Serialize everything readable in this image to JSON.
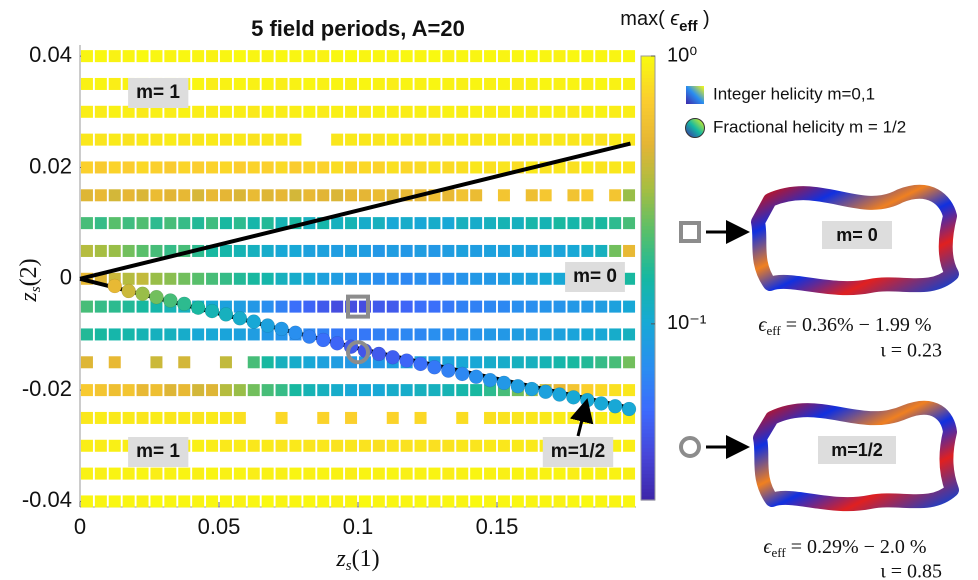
{
  "chart_data": {
    "type": "heatmap-scatter",
    "title": "5 field periods, A=20",
    "xlabel": [
      "z",
      "s",
      "(1)"
    ],
    "ylabel": [
      "z",
      "s",
      "(2)"
    ],
    "xlim": [
      0,
      0.2
    ],
    "ylim": [
      -0.041,
      0.042
    ],
    "xticks": [
      0,
      0.05,
      0.1,
      0.15
    ],
    "yticks": [
      0.04,
      0.02,
      0,
      -0.02,
      -0.04
    ],
    "x": [
      0.0025,
      0.0075,
      0.0125,
      0.0175,
      0.0225,
      0.0275,
      0.0325,
      0.0375,
      0.0425,
      0.0475,
      0.0525,
      0.0575,
      0.0625,
      0.0675,
      0.0725,
      0.0775,
      0.0825,
      0.0875,
      0.0925,
      0.0975,
      0.1025,
      0.1075,
      0.1125,
      0.1175,
      0.1225,
      0.1275,
      0.1325,
      0.1375,
      0.1425,
      0.1475,
      0.1525,
      0.1575,
      0.1625,
      0.1675,
      0.1725,
      0.1775,
      0.1825,
      0.1875,
      0.1925,
      0.1975
    ],
    "y": [
      0.04,
      0.035,
      0.03,
      0.025,
      0.02,
      0.015,
      0.01,
      0.005,
      0,
      -0.005,
      -0.01,
      -0.015,
      -0.02,
      -0.025,
      -0.03,
      -0.035,
      -0.04
    ],
    "values": [
      [
        0.95,
        0.97,
        0.93,
        0.95,
        0.98,
        0.96,
        0.94,
        0.97,
        0.95,
        0.93,
        0.96,
        0.98,
        0.95,
        0.94,
        0.97,
        0.96,
        0.95,
        0.93,
        0.97,
        0.98,
        0.95,
        0.96,
        0.94,
        0.97,
        0.95,
        0.98,
        0.93,
        0.96,
        0.95,
        0.97,
        0.94,
        0.96,
        0.98,
        0.95,
        0.93,
        0.97,
        0.96,
        0.95,
        0.94,
        0.97
      ],
      [
        0.92,
        0.94,
        0.9,
        0.93,
        0.95,
        0.91,
        0.94,
        0.92,
        0.96,
        0.9,
        0.93,
        0.95,
        0.92,
        0.94,
        0.9,
        0.93,
        0.96,
        0.92,
        0.94,
        0.91,
        0.95,
        0.93,
        0.9,
        0.94,
        0.92,
        0.96,
        0.93,
        0.91,
        0.95,
        0.92,
        0.94,
        0.9,
        0.93,
        0.95,
        0.92,
        0.94,
        0.91,
        0.96,
        0.93,
        0.92
      ],
      [
        0.9,
        0.88,
        0.92,
        0.9,
        0.87,
        0.91,
        0.89,
        0.93,
        0.9,
        0.88,
        0.91,
        0.9,
        0.86,
        0.92,
        0.89,
        0.9,
        0.93,
        0.88,
        0.91,
        0.9,
        0.87,
        0.92,
        0.9,
        0.89,
        0.91,
        0.88,
        0.93,
        0.9,
        0.92,
        0.89,
        0.9,
        0.91,
        0.88,
        0.92,
        0.9,
        0.87,
        0.91,
        0.93,
        0.89,
        0.9
      ],
      [
        0.85,
        0.83,
        0.87,
        0.82,
        0.86,
        0.84,
        0.88,
        0.83,
        0.85,
        0.87,
        0.84,
        0.86,
        0.82,
        0.85,
        0.83,
        0.87,
        null,
        null,
        0.84,
        0.86,
        0.85,
        0.83,
        0.88,
        0.84,
        0.86,
        0.82,
        0.85,
        0.87,
        0.83,
        0.86,
        0.84,
        0.85,
        0.87,
        0.83,
        0.86,
        0.84,
        0.85,
        0.82,
        0.87,
        0.85
      ],
      [
        0.7,
        0.65,
        0.72,
        0.68,
        0.75,
        0.7,
        0.66,
        0.73,
        0.69,
        0.71,
        0.74,
        0.68,
        0.72,
        0.7,
        0.76,
        0.67,
        0.73,
        0.71,
        0.78,
        0.7,
        0.75,
        0.72,
        0.8,
        0.74,
        0.77,
        0.82,
        0.76,
        0.79,
        0.85,
        0.8,
        0.83,
        0.78,
        0.86,
        0.81,
        0.84,
        0.8,
        0.87,
        0.82,
        0.85,
        0.83
      ],
      [
        0.45,
        0.5,
        0.42,
        0.48,
        0.44,
        0.52,
        0.46,
        0.49,
        0.43,
        0.5,
        0.47,
        0.44,
        0.51,
        0.45,
        0.48,
        0.42,
        0.5,
        0.46,
        0.44,
        0.49,
        0.47,
        0.52,
        0.45,
        0.5,
        0.48,
        0.55,
        0.5,
        0.58,
        0.52,
        null,
        0.6,
        null,
        0.55,
        0.62,
        null,
        0.58,
        0.65,
        null,
        0.6,
        0.3
      ],
      [
        0.2,
        0.18,
        0.22,
        0.19,
        0.21,
        0.17,
        0.2,
        0.18,
        0.16,
        0.19,
        0.15,
        0.17,
        0.14,
        0.16,
        0.13,
        0.15,
        0.12,
        0.14,
        0.12,
        0.13,
        0.11,
        0.12,
        0.1,
        0.11,
        0.1,
        0.11,
        0.1,
        0.12,
        0.11,
        0.12,
        0.13,
        0.12,
        0.14,
        0.13,
        0.15,
        0.14,
        0.16,
        0.15,
        0.17,
        0.2
      ],
      [
        0.35,
        0.32,
        0.3,
        0.25,
        0.22,
        0.2,
        0.18,
        0.2,
        0.17,
        0.15,
        0.14,
        0.13,
        0.12,
        0.11,
        0.1,
        0.1,
        0.09,
        0.09,
        0.085,
        0.09,
        0.085,
        0.08,
        0.085,
        0.08,
        0.085,
        0.08,
        0.085,
        0.09,
        0.085,
        0.09,
        0.09,
        0.095,
        0.09,
        0.1,
        0.095,
        0.1,
        0.11,
        0.12,
        0.25,
        0.5
      ],
      [
        0.5,
        0.45,
        0.4,
        0.35,
        0.38,
        0.3,
        0.28,
        0.25,
        0.22,
        0.2,
        0.18,
        0.16,
        0.15,
        0.14,
        0.12,
        0.11,
        0.1,
        0.09,
        0.085,
        0.08,
        0.075,
        0.07,
        0.07,
        0.065,
        0.07,
        0.065,
        0.07,
        0.075,
        0.08,
        0.08,
        0.085,
        0.09,
        0.09,
        0.1,
        0.1,
        0.11,
        0.12,
        0.13,
        0.14,
        0.15
      ],
      [
        0.2,
        0.18,
        0.17,
        0.16,
        0.15,
        0.14,
        0.13,
        0.12,
        0.11,
        0.1,
        0.09,
        0.085,
        0.08,
        0.07,
        0.06,
        0.05,
        0.045,
        0.04,
        0.035,
        0.035,
        0.035,
        0.04,
        0.04,
        0.045,
        0.05,
        0.05,
        0.055,
        0.06,
        0.06,
        0.065,
        0.065,
        0.07,
        0.07,
        0.075,
        0.075,
        0.08,
        0.08,
        0.085,
        0.09,
        0.1
      ],
      [
        0.16,
        0.15,
        0.14,
        0.14,
        0.13,
        0.12,
        0.12,
        0.11,
        0.1,
        0.1,
        0.095,
        0.09,
        0.085,
        0.08,
        0.075,
        0.07,
        0.065,
        0.06,
        0.055,
        0.055,
        0.055,
        0.06,
        0.06,
        0.065,
        0.065,
        0.07,
        0.07,
        0.075,
        0.075,
        0.08,
        0.08,
        0.085,
        0.085,
        0.09,
        0.09,
        0.095,
        0.1,
        0.1,
        0.11,
        0.12
      ],
      [
        0.45,
        null,
        0.5,
        null,
        null,
        0.4,
        null,
        0.42,
        null,
        null,
        0.38,
        null,
        0.2,
        0.15,
        0.12,
        0.11,
        0.1,
        0.09,
        0.085,
        0.08,
        0.08,
        0.08,
        0.085,
        0.085,
        0.09,
        0.09,
        0.095,
        0.1,
        0.1,
        0.11,
        0.11,
        0.12,
        0.12,
        0.13,
        0.14,
        0.15,
        0.16,
        0.18,
        0.2,
        0.25
      ],
      [
        0.65,
        0.6,
        0.55,
        0.6,
        0.5,
        0.55,
        0.45,
        0.5,
        0.42,
        0.45,
        0.35,
        0.3,
        0.25,
        0.2,
        0.18,
        0.15,
        0.13,
        0.12,
        0.11,
        0.1,
        0.1,
        0.1,
        0.11,
        0.11,
        0.12,
        0.12,
        0.13,
        0.14,
        0.15,
        0.17,
        0.2,
        0.25,
        0.3,
        0.4,
        0.5,
        0.6,
        0.7,
        0.75,
        0.8,
        0.85
      ],
      [
        0.85,
        0.88,
        0.86,
        0.87,
        0.84,
        0.88,
        0.85,
        0.86,
        0.83,
        0.87,
        0.85,
        0.8,
        null,
        null,
        0.75,
        null,
        null,
        0.72,
        null,
        0.7,
        null,
        null,
        0.72,
        null,
        0.75,
        null,
        null,
        0.78,
        null,
        0.8,
        0.82,
        0.84,
        0.85,
        0.86,
        0.88,
        0.87,
        0.89,
        0.88,
        0.9,
        0.9
      ],
      [
        0.9,
        0.88,
        0.91,
        0.89,
        0.9,
        0.87,
        0.9,
        0.88,
        0.91,
        0.89,
        0.86,
        0.88,
        0.85,
        0.87,
        0.84,
        0.86,
        0.83,
        0.85,
        0.82,
        0.84,
        0.82,
        0.8,
        0.83,
        0.81,
        0.84,
        0.8,
        0.82,
        0.85,
        0.83,
        0.86,
        0.85,
        0.87,
        0.86,
        0.88,
        0.87,
        0.89,
        0.9,
        0.88,
        0.91,
        0.9
      ],
      [
        0.93,
        0.91,
        0.94,
        0.92,
        0.95,
        0.9,
        0.93,
        0.94,
        0.91,
        0.95,
        0.92,
        0.94,
        0.9,
        0.93,
        0.91,
        0.95,
        0.92,
        0.94,
        0.93,
        0.9,
        0.94,
        0.92,
        0.95,
        0.91,
        0.93,
        0.94,
        0.9,
        0.92,
        0.95,
        0.93,
        0.91,
        0.94,
        0.92,
        0.93,
        0.95,
        0.9,
        0.94,
        0.92,
        0.93,
        0.91
      ],
      [
        0.96,
        0.94,
        0.97,
        0.95,
        0.93,
        0.98,
        0.95,
        0.96,
        0.94,
        0.97,
        0.95,
        0.93,
        0.96,
        0.98,
        0.94,
        0.95,
        0.97,
        0.96,
        0.93,
        0.95,
        0.98,
        0.94,
        0.96,
        0.95,
        0.97,
        0.93,
        0.96,
        0.94,
        0.98,
        0.95,
        0.96,
        0.97,
        0.94,
        0.95,
        0.93,
        0.96,
        0.98,
        0.95,
        0.94,
        0.96
      ]
    ],
    "circles": {
      "x": [
        0.0125,
        0.0175,
        0.0225,
        0.0275,
        0.0325,
        0.0375,
        0.0425,
        0.0475,
        0.0525,
        0.0575,
        0.0625,
        0.0675,
        0.0725,
        0.0775,
        0.0825,
        0.0875,
        0.0925,
        0.0975,
        0.1025,
        0.1075,
        0.1125,
        0.1175,
        0.1225,
        0.1275,
        0.1325,
        0.1375,
        0.1425,
        0.1475,
        0.1525,
        0.1575,
        0.1625,
        0.1675,
        0.1725,
        0.1775,
        0.1825,
        0.1875,
        0.1925,
        0.1975
      ],
      "y": [
        -0.0013,
        -0.0022,
        -0.0027,
        -0.0033,
        -0.0039,
        -0.0045,
        -0.0052,
        -0.0058,
        -0.0064,
        -0.0071,
        -0.0077,
        -0.0084,
        -0.009,
        -0.0097,
        -0.0104,
        -0.011,
        -0.0116,
        -0.0122,
        -0.0129,
        -0.0135,
        -0.0141,
        -0.0147,
        -0.0153,
        -0.0159,
        -0.0165,
        -0.0171,
        -0.0176,
        -0.0182,
        -0.0187,
        -0.0193,
        -0.0198,
        -0.0203,
        -0.0208,
        -0.0213,
        -0.0218,
        -0.0224,
        -0.0229,
        -0.0234
      ],
      "values": [
        0.5,
        0.4,
        0.3,
        0.25,
        0.2,
        0.17,
        0.15,
        0.13,
        0.12,
        0.11,
        0.1,
        0.09,
        0.08,
        0.07,
        0.06,
        0.05,
        0.045,
        0.04,
        0.038,
        0.04,
        0.042,
        0.045,
        0.05,
        0.055,
        0.06,
        0.065,
        0.07,
        0.075,
        0.08,
        0.085,
        0.09,
        0.09,
        0.095,
        0.1,
        0.1,
        0.1,
        0.1,
        0.1
      ]
    },
    "lines": [
      {
        "x": [
          0,
          0.198
        ],
        "y": [
          0,
          0.0243
        ]
      },
      {
        "x": [
          0,
          0.1,
          0.198
        ],
        "y": [
          0,
          -0.0125,
          -0.0232
        ]
      }
    ],
    "highlights": {
      "x": [
        0.1,
        0.1
      ],
      "y": [
        -0.005,
        -0.0132
      ],
      "marker": [
        "square",
        "circle"
      ],
      "color": "#8c8c8c"
    },
    "annotations": [
      "m= 1",
      "m= 0",
      "m= 1",
      "m=1/2"
    ],
    "colorbar": {
      "label": [
        "max( ",
        "ϵ",
        "eff",
        " )"
      ],
      "scale": "log",
      "clim": [
        0.022,
        1
      ],
      "ticks": [
        {
          "value": 0.1,
          "label": "10⁻¹"
        },
        {
          "value": 1,
          "label": "10⁰"
        }
      ],
      "colormap": "parula"
    },
    "legend": [
      {
        "name": "Integer helicity m=0,1",
        "marker": "square"
      },
      {
        "name": "Fractional helicity m = 1/2",
        "marker": "circle"
      }
    ]
  },
  "panels": [
    {
      "label": "m= 0",
      "eps": [
        "ϵ",
        "eff",
        " = 0.36% − 1.99 %"
      ],
      "iota": "ι = 0.23"
    },
    {
      "label": "m=1/2",
      "eps": [
        "ϵ",
        "eff",
        " = 0.29% − 2.0 %"
      ],
      "iota": "ι = 0.85"
    }
  ]
}
